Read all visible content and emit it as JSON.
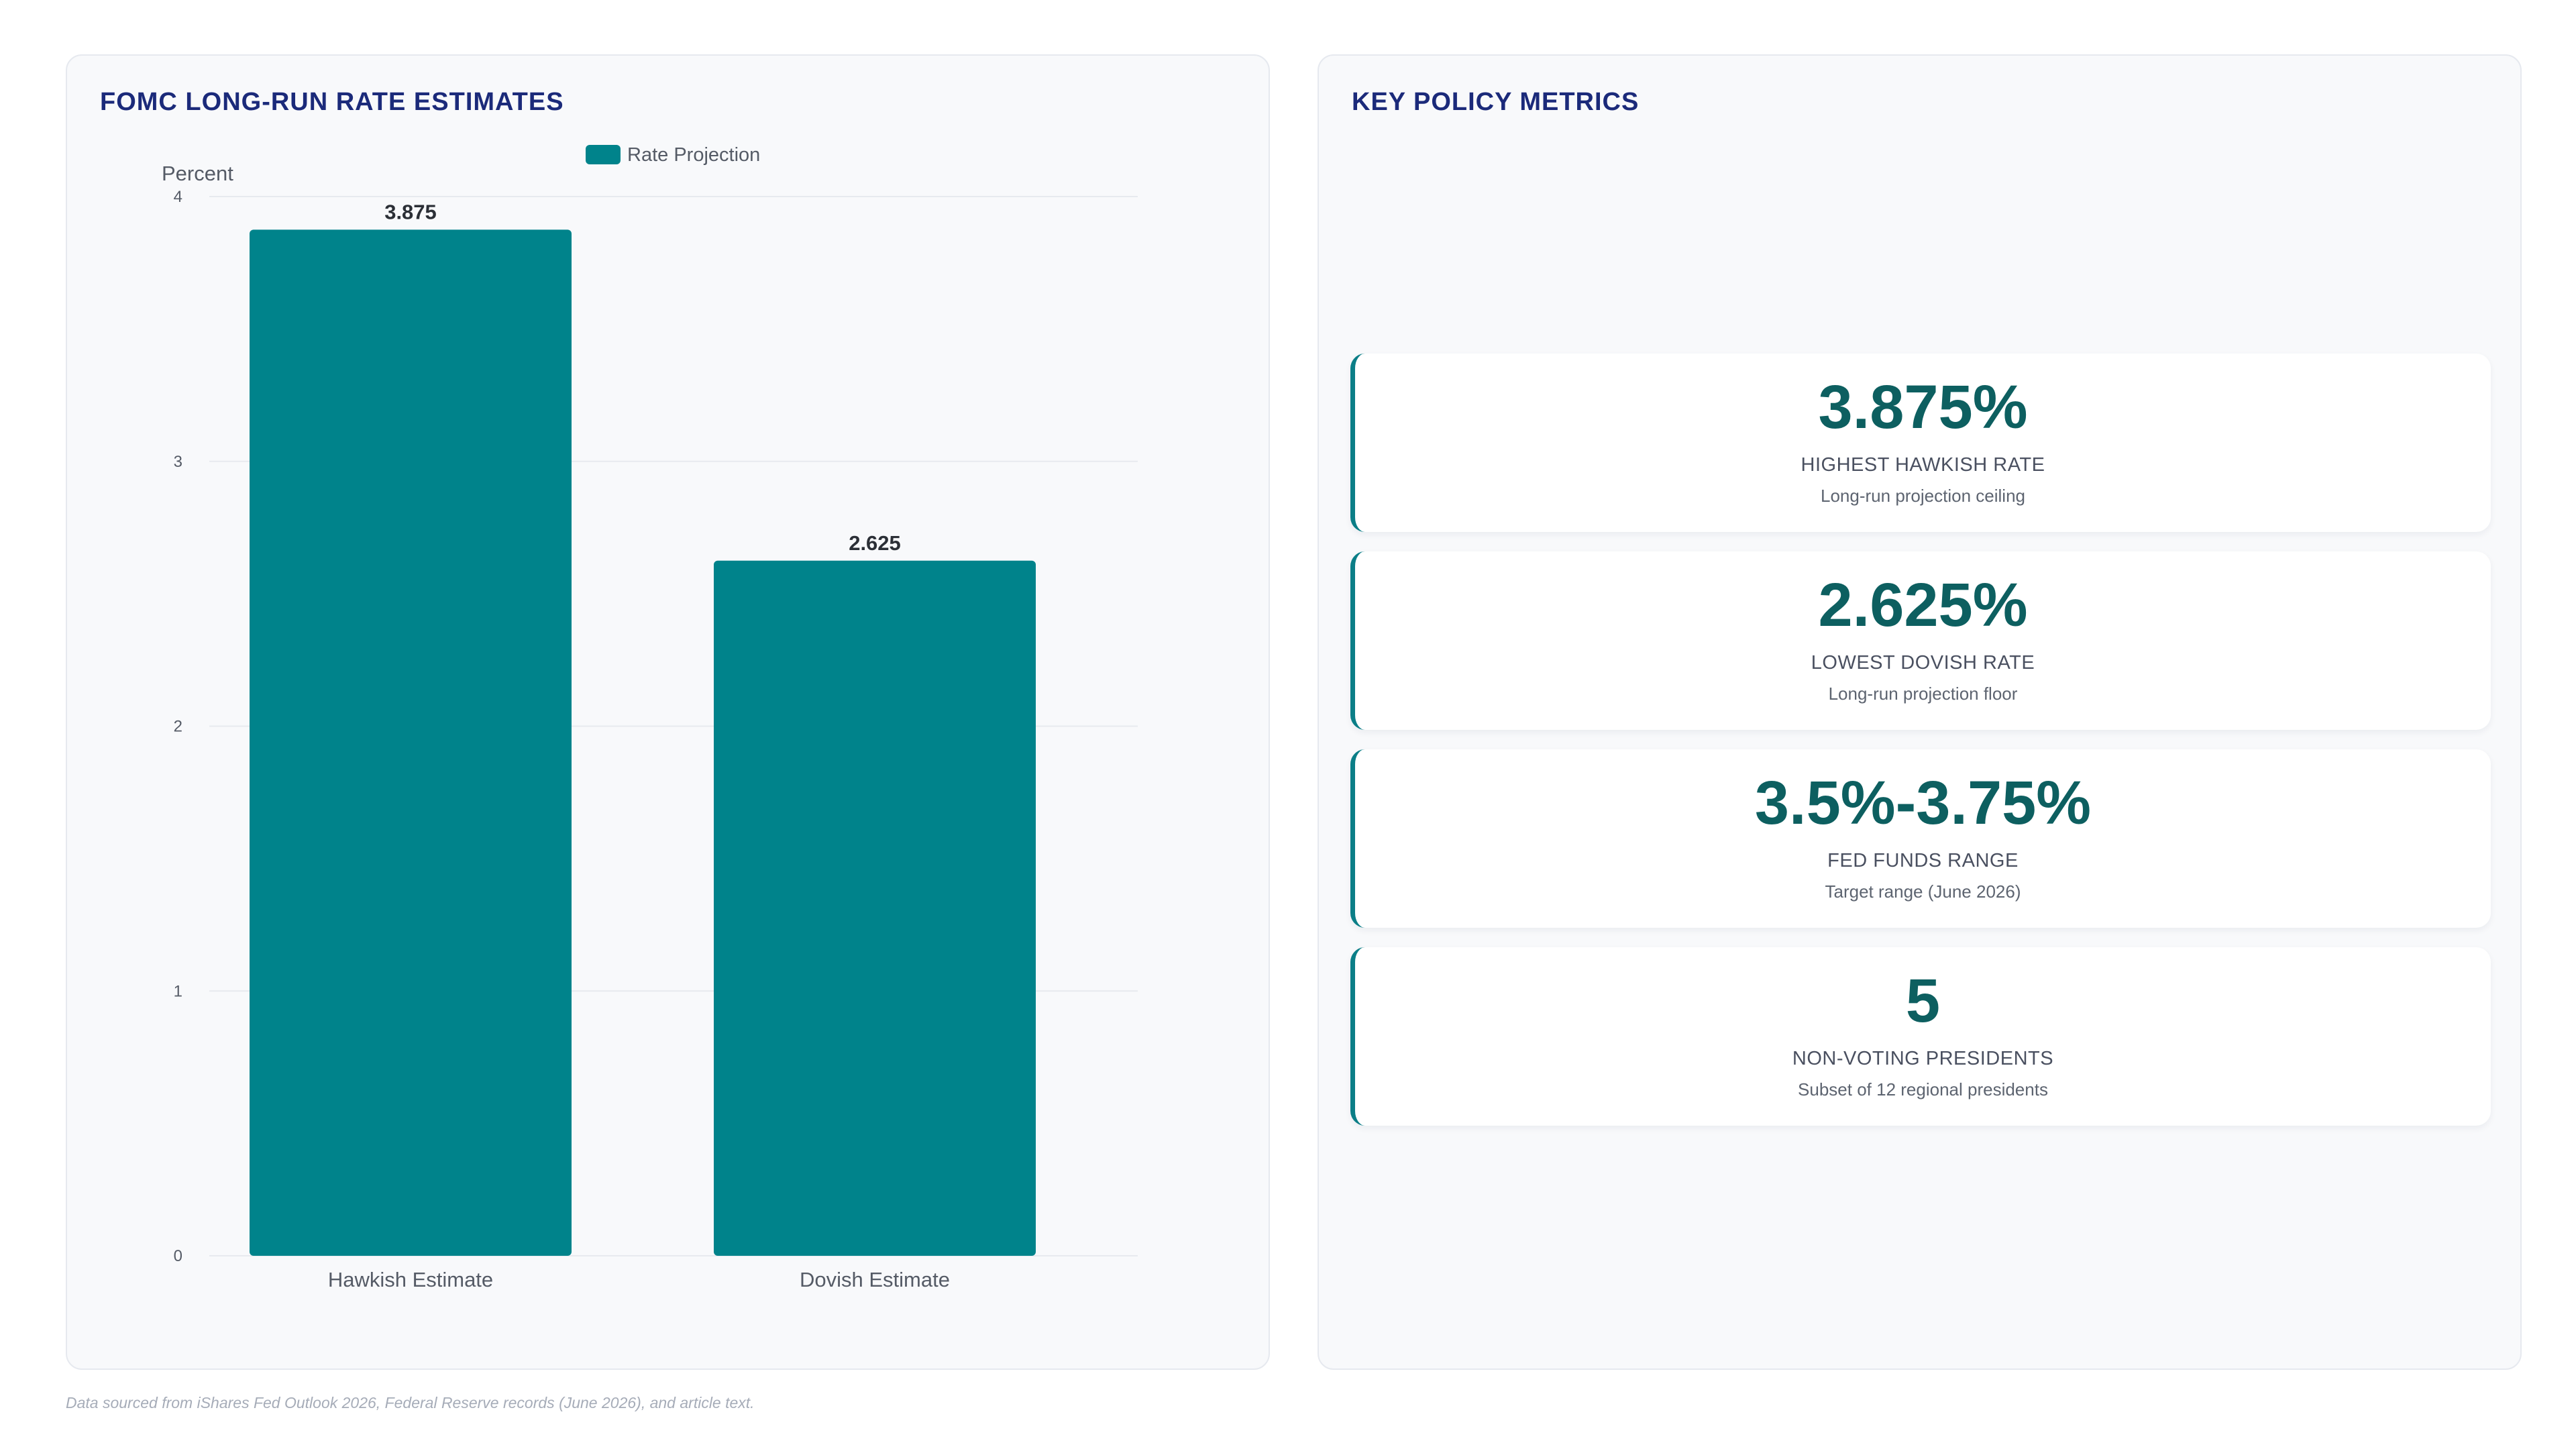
{
  "chart_panel": {
    "title": "FOMC LONG-RUN RATE ESTIMATES"
  },
  "chart_data": {
    "type": "bar",
    "categories": [
      "Hawkish Estimate",
      "Dovish Estimate"
    ],
    "series": [
      {
        "name": "Rate Projection",
        "values": [
          3.875,
          2.625
        ],
        "color": "#00838b"
      }
    ],
    "title": "",
    "xlabel": "",
    "ylabel": "Percent",
    "ylim": [
      0,
      4
    ],
    "yticks": [
      0,
      1,
      2,
      3,
      4
    ],
    "data_labels": [
      "3.875",
      "2.625"
    ],
    "grid": true,
    "legend": "top-center"
  },
  "metrics_panel": {
    "title": "KEY POLICY METRICS",
    "cards": [
      {
        "value": "3.875%",
        "label": "HIGHEST HAWKISH RATE",
        "sub": "Long-run projection ceiling"
      },
      {
        "value": "2.625%",
        "label": "LOWEST DOVISH RATE",
        "sub": "Long-run projection floor"
      },
      {
        "value": "3.5%-3.75%",
        "label": "FED FUNDS RANGE",
        "sub": "Target range (June 2026)"
      },
      {
        "value": "5",
        "label": "NON-VOTING PRESIDENTS",
        "sub": "Subset of 12 regional presidents"
      }
    ]
  },
  "footer": {
    "note": "Data sourced from iShares Fed Outlook 2026, Federal Reserve records (June 2026), and article text."
  },
  "colors": {
    "accent": "#00838b",
    "metric_value": "#0d5f60",
    "title": "#1b2a7a"
  }
}
